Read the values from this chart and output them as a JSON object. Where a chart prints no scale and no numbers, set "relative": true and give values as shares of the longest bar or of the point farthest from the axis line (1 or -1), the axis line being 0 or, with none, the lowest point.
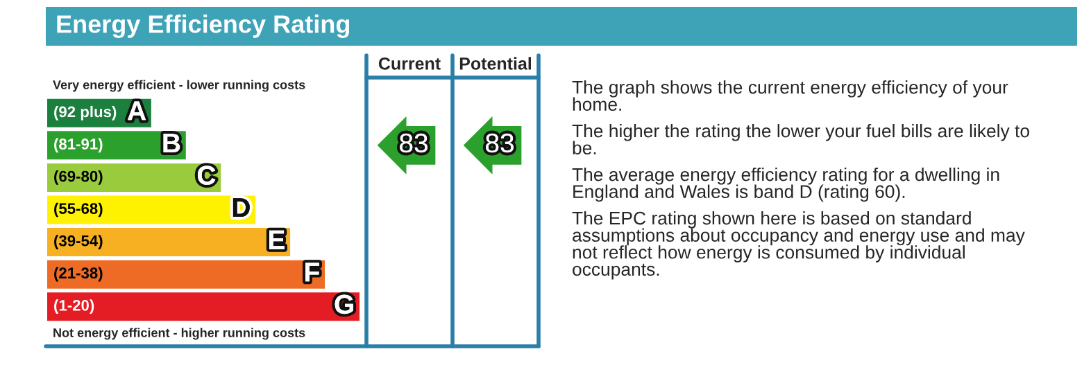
{
  "chart_data": {
    "type": "bar",
    "orientation": "horizontal",
    "relative": true,
    "title": "Energy Efficiency Rating",
    "categories": [
      "A",
      "B",
      "C",
      "D",
      "E",
      "F",
      "G"
    ],
    "values": [
      0.333,
      0.444,
      0.556,
      0.667,
      0.778,
      0.889,
      1.0
    ],
    "colors": [
      "#1b7f3e",
      "#2ca02c",
      "#9acb3c",
      "#fff200",
      "#f7b022",
      "#ed6b24",
      "#e31d23"
    ],
    "annotations": [
      "Very energy efficient - lower running costs",
      "Not energy efficient - higher running costs",
      "Current",
      "Potential",
      "83",
      "83",
      "(92 plus)",
      "(81-91)",
      "(69-80)",
      "(55-68)",
      "(39-54)",
      "(21-38)",
      "(1-20)",
      "The graph shows the current energy efficiency of your home.",
      "The higher the rating the lower your fuel bills are likely to be.",
      "The average energy efficiency rating for a dwelling in England and Wales is band D (rating 60).",
      "The EPC rating shown here is based on standard assumptions about occupancy and energy use and may not reflect how energy is consumed by individual occupants."
    ]
  }
}
